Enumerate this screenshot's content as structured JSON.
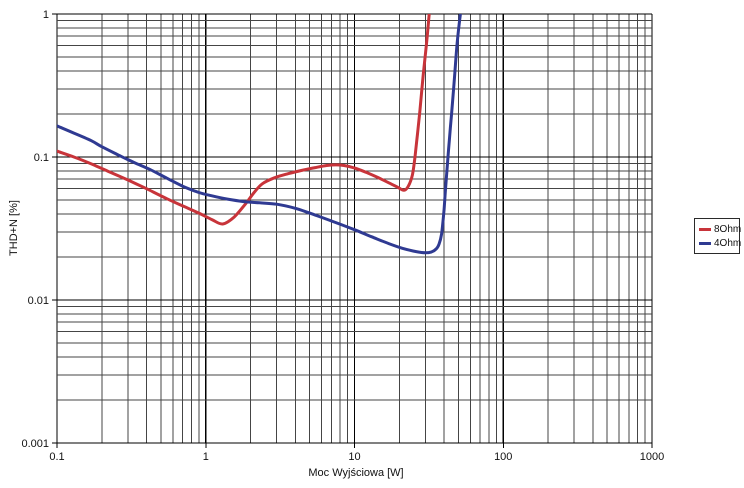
{
  "chart_data": {
    "type": "line",
    "title": "",
    "xlabel": "Moc Wyjściowa [W]",
    "ylabel": "THD+N [%]",
    "x_scale": "log",
    "y_scale": "log",
    "xlim": [
      0.1,
      1000
    ],
    "ylim": [
      0.001,
      1
    ],
    "grid": "major and minor log gridlines on both axes",
    "legend_position": "outside-right",
    "x_ticks": [
      {
        "value": 0.1,
        "label": "0.1"
      },
      {
        "value": 1,
        "label": "1"
      },
      {
        "value": 10,
        "label": "10"
      },
      {
        "value": 100,
        "label": "100"
      },
      {
        "value": 1000,
        "label": "1000"
      }
    ],
    "y_ticks": [
      {
        "value": 1,
        "label": "1"
      },
      {
        "value": 0.1,
        "label": "0.1"
      },
      {
        "value": 0.01,
        "label": "0.01"
      },
      {
        "value": 0.001,
        "label": "0.001"
      }
    ],
    "series": [
      {
        "name": "8Ohm",
        "color": "#c8343a",
        "points": [
          [
            0.1,
            0.11
          ],
          [
            0.13,
            0.1
          ],
          [
            0.17,
            0.0895
          ],
          [
            0.22,
            0.0795
          ],
          [
            0.3,
            0.069
          ],
          [
            0.4,
            0.06
          ],
          [
            0.55,
            0.051
          ],
          [
            0.7,
            0.0455
          ],
          [
            0.9,
            0.0405
          ],
          [
            1.1,
            0.0365
          ],
          [
            1.3,
            0.034
          ],
          [
            1.55,
            0.038
          ],
          [
            1.85,
            0.047
          ],
          [
            2.1,
            0.056
          ],
          [
            2.4,
            0.065
          ],
          [
            2.9,
            0.0715
          ],
          [
            3.6,
            0.0765
          ],
          [
            4.5,
            0.081
          ],
          [
            5.5,
            0.0845
          ],
          [
            6.5,
            0.0872
          ],
          [
            7.5,
            0.088
          ],
          [
            8.5,
            0.0872
          ],
          [
            10.0,
            0.0838
          ],
          [
            12.0,
            0.078
          ],
          [
            14.5,
            0.0715
          ],
          [
            17.0,
            0.066
          ],
          [
            19.5,
            0.0615
          ],
          [
            21.5,
            0.0585
          ],
          [
            23.0,
            0.0625
          ],
          [
            24.5,
            0.075
          ],
          [
            25.5,
            0.1
          ],
          [
            26.5,
            0.145
          ],
          [
            27.5,
            0.21
          ],
          [
            29.0,
            0.38
          ],
          [
            30.5,
            0.62
          ],
          [
            31.8,
            1.0
          ]
        ]
      },
      {
        "name": "4Ohm",
        "color": "#2f3a92",
        "points": [
          [
            0.1,
            0.165
          ],
          [
            0.13,
            0.147
          ],
          [
            0.17,
            0.13
          ],
          [
            0.2,
            0.118
          ],
          [
            0.26,
            0.103
          ],
          [
            0.33,
            0.0915
          ],
          [
            0.42,
            0.082
          ],
          [
            0.55,
            0.071
          ],
          [
            0.7,
            0.0625
          ],
          [
            0.9,
            0.0565
          ],
          [
            1.1,
            0.0535
          ],
          [
            1.4,
            0.0508
          ],
          [
            1.8,
            0.0488
          ],
          [
            2.3,
            0.0478
          ],
          [
            3.0,
            0.0468
          ],
          [
            4.0,
            0.0438
          ],
          [
            5.0,
            0.0405
          ],
          [
            7.0,
            0.0357
          ],
          [
            10.0,
            0.031
          ],
          [
            13.0,
            0.0277
          ],
          [
            17.0,
            0.0248
          ],
          [
            21.0,
            0.023
          ],
          [
            26.0,
            0.0218
          ],
          [
            30.0,
            0.0214
          ],
          [
            33.0,
            0.0217
          ],
          [
            35.5,
            0.0228
          ],
          [
            37.0,
            0.0245
          ],
          [
            38.5,
            0.029
          ],
          [
            40.0,
            0.043
          ],
          [
            41.0,
            0.062
          ],
          [
            42.0,
            0.085
          ],
          [
            43.5,
            0.135
          ],
          [
            45.0,
            0.205
          ],
          [
            47.0,
            0.36
          ],
          [
            49.0,
            0.63
          ],
          [
            51.5,
            1.0
          ]
        ]
      }
    ],
    "style": {
      "grid_minor_color": "#454545",
      "grid_major_color": "#000000",
      "text_color": "#111111",
      "background": "#ffffff"
    }
  }
}
